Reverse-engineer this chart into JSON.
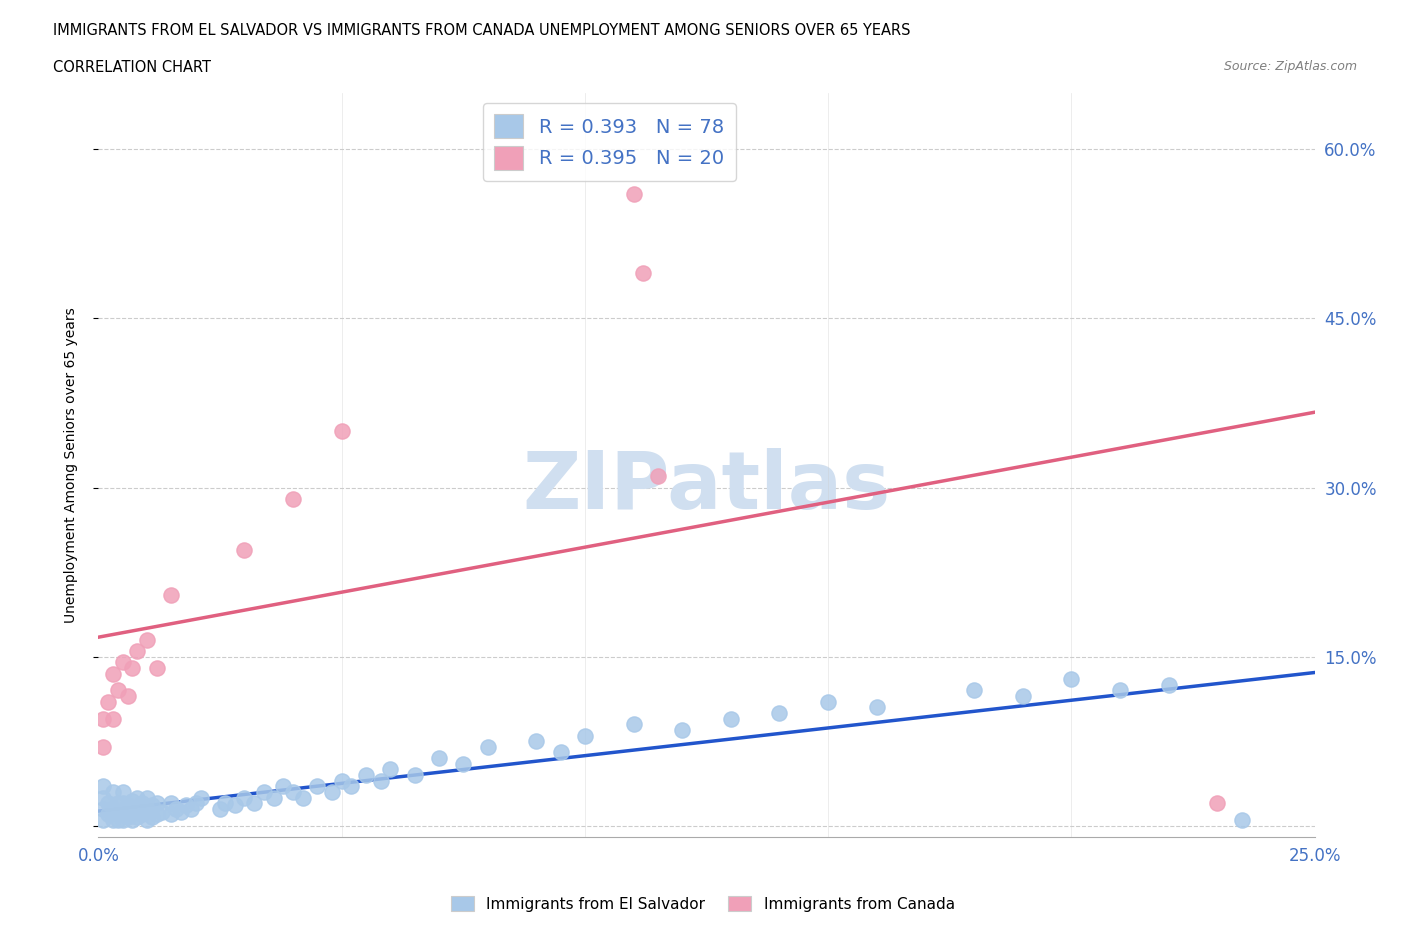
{
  "title_line1": "IMMIGRANTS FROM EL SALVADOR VS IMMIGRANTS FROM CANADA UNEMPLOYMENT AMONG SENIORS OVER 65 YEARS",
  "title_line2": "CORRELATION CHART",
  "source": "Source: ZipAtlas.com",
  "ylabel": "Unemployment Among Seniors over 65 years",
  "xlim": [
    0.0,
    0.25
  ],
  "ylim": [
    -0.01,
    0.65
  ],
  "el_salvador_R": 0.393,
  "el_salvador_N": 78,
  "canada_R": 0.395,
  "canada_N": 20,
  "color_blue": "#a8c8e8",
  "color_pink": "#f0a0b8",
  "line_blue": "#2255cc",
  "line_pink": "#e06080",
  "el_salvador_x": [
    0.001,
    0.001,
    0.001,
    0.001,
    0.002,
    0.002,
    0.003,
    0.003,
    0.003,
    0.004,
    0.004,
    0.004,
    0.005,
    0.005,
    0.005,
    0.005,
    0.006,
    0.006,
    0.007,
    0.007,
    0.007,
    0.008,
    0.008,
    0.008,
    0.009,
    0.009,
    0.01,
    0.01,
    0.01,
    0.011,
    0.011,
    0.012,
    0.012,
    0.013,
    0.015,
    0.015,
    0.016,
    0.017,
    0.018,
    0.019,
    0.02,
    0.021,
    0.025,
    0.026,
    0.028,
    0.03,
    0.032,
    0.034,
    0.036,
    0.038,
    0.04,
    0.042,
    0.045,
    0.048,
    0.05,
    0.052,
    0.055,
    0.058,
    0.06,
    0.065,
    0.07,
    0.075,
    0.08,
    0.09,
    0.095,
    0.1,
    0.11,
    0.12,
    0.13,
    0.14,
    0.15,
    0.16,
    0.18,
    0.19,
    0.2,
    0.21,
    0.22,
    0.235
  ],
  "el_salvador_y": [
    0.005,
    0.015,
    0.025,
    0.035,
    0.01,
    0.02,
    0.005,
    0.015,
    0.03,
    0.005,
    0.01,
    0.02,
    0.005,
    0.01,
    0.02,
    0.03,
    0.008,
    0.018,
    0.005,
    0.012,
    0.022,
    0.008,
    0.015,
    0.025,
    0.01,
    0.02,
    0.005,
    0.015,
    0.025,
    0.008,
    0.018,
    0.01,
    0.02,
    0.012,
    0.01,
    0.02,
    0.015,
    0.012,
    0.018,
    0.015,
    0.02,
    0.025,
    0.015,
    0.02,
    0.018,
    0.025,
    0.02,
    0.03,
    0.025,
    0.035,
    0.03,
    0.025,
    0.035,
    0.03,
    0.04,
    0.035,
    0.045,
    0.04,
    0.05,
    0.045,
    0.06,
    0.055,
    0.07,
    0.075,
    0.065,
    0.08,
    0.09,
    0.085,
    0.095,
    0.1,
    0.11,
    0.105,
    0.12,
    0.115,
    0.13,
    0.12,
    0.125,
    0.005
  ],
  "canada_x": [
    0.001,
    0.001,
    0.002,
    0.003,
    0.003,
    0.004,
    0.005,
    0.006,
    0.007,
    0.008,
    0.01,
    0.012,
    0.015,
    0.03,
    0.04,
    0.05,
    0.11,
    0.112,
    0.23,
    0.115
  ],
  "canada_y": [
    0.07,
    0.095,
    0.11,
    0.095,
    0.135,
    0.12,
    0.145,
    0.115,
    0.14,
    0.155,
    0.165,
    0.14,
    0.205,
    0.245,
    0.29,
    0.35,
    0.56,
    0.49,
    0.02,
    0.31
  ]
}
